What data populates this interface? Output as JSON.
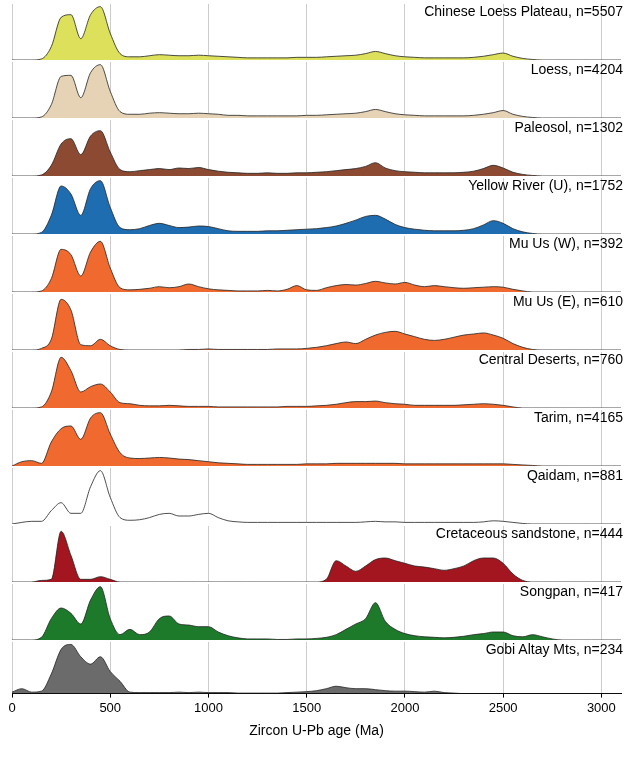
{
  "chart_data": {
    "type": "area",
    "xlabel": "Zircon U-Pb age (Ma)",
    "x": [
      0,
      50,
      100,
      150,
      200,
      250,
      300,
      350,
      400,
      450,
      500,
      550,
      600,
      650,
      700,
      750,
      800,
      850,
      900,
      950,
      1000,
      1050,
      1100,
      1150,
      1200,
      1250,
      1300,
      1350,
      1400,
      1450,
      1500,
      1550,
      1600,
      1650,
      1700,
      1750,
      1800,
      1850,
      1900,
      1950,
      2000,
      2050,
      2100,
      2150,
      2200,
      2250,
      2300,
      2350,
      2400,
      2450,
      2500,
      2550,
      2600,
      2650,
      2700,
      2750,
      2800,
      2850,
      2900,
      2950,
      3000,
      3050,
      3100
    ],
    "xlim": [
      0,
      3100
    ],
    "xticks": [
      0,
      500,
      1000,
      1500,
      2000,
      2500,
      3000
    ],
    "ylim": [
      0,
      1.05
    ],
    "grid": true,
    "tick_labels": "x",
    "series": [
      {
        "name": "Chinese Loess Plateau, n=5507",
        "color": "#dce05a",
        "values": [
          0,
          0,
          0,
          0.02,
          0.25,
          0.8,
          0.85,
          0.4,
          0.85,
          1.0,
          0.5,
          0.12,
          0.06,
          0.06,
          0.08,
          0.1,
          0.09,
          0.08,
          0.08,
          0.09,
          0.08,
          0.07,
          0.06,
          0.05,
          0.04,
          0.04,
          0.04,
          0.04,
          0.04,
          0.05,
          0.05,
          0.05,
          0.06,
          0.07,
          0.08,
          0.09,
          0.12,
          0.16,
          0.12,
          0.08,
          0.06,
          0.05,
          0.04,
          0.04,
          0.04,
          0.04,
          0.04,
          0.05,
          0.07,
          0.1,
          0.13,
          0.07,
          0.03,
          0.01,
          0,
          0,
          0,
          0,
          0,
          0,
          0,
          0,
          0
        ]
      },
      {
        "name": "Loess, n=4204",
        "color": "#e6d2b5",
        "values": [
          0,
          0,
          0,
          0.02,
          0.25,
          0.78,
          0.8,
          0.38,
          0.85,
          1.0,
          0.5,
          0.12,
          0.07,
          0.07,
          0.09,
          0.1,
          0.09,
          0.08,
          0.08,
          0.09,
          0.08,
          0.07,
          0.05,
          0.05,
          0.04,
          0.04,
          0.04,
          0.04,
          0.04,
          0.04,
          0.05,
          0.05,
          0.06,
          0.07,
          0.08,
          0.09,
          0.12,
          0.16,
          0.12,
          0.08,
          0.06,
          0.05,
          0.04,
          0.04,
          0.04,
          0.04,
          0.04,
          0.05,
          0.07,
          0.1,
          0.14,
          0.07,
          0.03,
          0.01,
          0,
          0,
          0,
          0,
          0,
          0,
          0,
          0,
          0
        ]
      },
      {
        "name": "Paleosol, n=1302",
        "color": "#8c4a32",
        "values": [
          0,
          0,
          0,
          0.02,
          0.2,
          0.6,
          0.7,
          0.4,
          0.75,
          0.85,
          0.45,
          0.12,
          0.08,
          0.1,
          0.12,
          0.14,
          0.12,
          0.15,
          0.14,
          0.16,
          0.12,
          0.09,
          0.07,
          0.06,
          0.05,
          0.05,
          0.06,
          0.05,
          0.05,
          0.06,
          0.06,
          0.07,
          0.08,
          0.1,
          0.12,
          0.14,
          0.18,
          0.25,
          0.15,
          0.1,
          0.08,
          0.07,
          0.06,
          0.06,
          0.06,
          0.06,
          0.07,
          0.09,
          0.14,
          0.2,
          0.15,
          0.07,
          0.03,
          0.01,
          0,
          0,
          0,
          0,
          0,
          0,
          0,
          0,
          0
        ]
      },
      {
        "name": "Yellow River (U), n=1752",
        "color": "#1f6db1",
        "values": [
          0,
          0,
          0,
          0.03,
          0.35,
          0.9,
          0.75,
          0.35,
          0.85,
          1.0,
          0.5,
          0.12,
          0.08,
          0.1,
          0.16,
          0.2,
          0.16,
          0.12,
          0.13,
          0.15,
          0.14,
          0.1,
          0.06,
          0.05,
          0.05,
          0.05,
          0.06,
          0.06,
          0.07,
          0.08,
          0.09,
          0.1,
          0.12,
          0.15,
          0.2,
          0.26,
          0.33,
          0.35,
          0.28,
          0.18,
          0.12,
          0.09,
          0.07,
          0.06,
          0.06,
          0.06,
          0.07,
          0.1,
          0.17,
          0.25,
          0.2,
          0.1,
          0.04,
          0.01,
          0,
          0,
          0,
          0,
          0,
          0,
          0,
          0,
          0
        ]
      },
      {
        "name": "Mu Us (W), n=392",
        "color": "#f06a2f",
        "values": [
          0,
          0,
          0,
          0.02,
          0.25,
          0.8,
          0.7,
          0.3,
          0.75,
          0.95,
          0.45,
          0.08,
          0.04,
          0.05,
          0.07,
          0.1,
          0.08,
          0.1,
          0.15,
          0.1,
          0.06,
          0.04,
          0.03,
          0.02,
          0.02,
          0.02,
          0.03,
          0.02,
          0.05,
          0.12,
          0.04,
          0.03,
          0.08,
          0.12,
          0.14,
          0.13,
          0.16,
          0.2,
          0.17,
          0.15,
          0.18,
          0.13,
          0.1,
          0.12,
          0.1,
          0.08,
          0.07,
          0.08,
          0.09,
          0.1,
          0.09,
          0.05,
          0.02,
          0,
          0,
          0,
          0,
          0,
          0,
          0,
          0,
          0,
          0
        ]
      },
      {
        "name": "Mu Us (E), n=610",
        "color": "#f06a2f",
        "values": [
          0,
          0,
          0,
          0.03,
          0.2,
          0.95,
          0.75,
          0.1,
          0.08,
          0.2,
          0.08,
          0.01,
          0,
          0,
          0,
          0,
          0,
          0,
          0.01,
          0.01,
          0.02,
          0.01,
          0.01,
          0.01,
          0.01,
          0.01,
          0.01,
          0.02,
          0.02,
          0.02,
          0.03,
          0.05,
          0.08,
          0.12,
          0.15,
          0.12,
          0.2,
          0.28,
          0.33,
          0.35,
          0.3,
          0.25,
          0.2,
          0.18,
          0.2,
          0.24,
          0.28,
          0.3,
          0.32,
          0.28,
          0.22,
          0.12,
          0.05,
          0.01,
          0,
          0,
          0,
          0,
          0,
          0,
          0,
          0,
          0
        ]
      },
      {
        "name": "Central Deserts, n=760",
        "color": "#f06a2f",
        "values": [
          0,
          0,
          0,
          0.02,
          0.3,
          0.95,
          0.7,
          0.3,
          0.4,
          0.45,
          0.3,
          0.1,
          0.08,
          0.05,
          0.04,
          0.04,
          0.05,
          0.04,
          0.03,
          0.03,
          0.03,
          0.02,
          0.02,
          0.02,
          0.02,
          0.02,
          0.02,
          0.02,
          0.03,
          0.03,
          0.03,
          0.04,
          0.05,
          0.07,
          0.1,
          0.12,
          0.12,
          0.13,
          0.1,
          0.08,
          0.07,
          0.05,
          0.05,
          0.05,
          0.05,
          0.05,
          0.06,
          0.07,
          0.08,
          0.07,
          0.05,
          0.02,
          0,
          0,
          0,
          0,
          0,
          0,
          0,
          0,
          0,
          0,
          0
        ]
      },
      {
        "name": "Tarim, n=4165",
        "color": "#f06a2f",
        "values": [
          0,
          0.08,
          0.1,
          0.05,
          0.45,
          0.7,
          0.75,
          0.5,
          0.9,
          1.0,
          0.6,
          0.25,
          0.15,
          0.14,
          0.15,
          0.16,
          0.15,
          0.13,
          0.12,
          0.1,
          0.08,
          0.06,
          0.05,
          0.04,
          0.03,
          0.03,
          0.03,
          0.03,
          0.03,
          0.03,
          0.04,
          0.04,
          0.04,
          0.05,
          0.05,
          0.05,
          0.05,
          0.05,
          0.05,
          0.05,
          0.04,
          0.04,
          0.04,
          0.04,
          0.04,
          0.04,
          0.04,
          0.04,
          0.04,
          0.04,
          0.04,
          0.03,
          0.02,
          0.01,
          0,
          0,
          0,
          0,
          0,
          0,
          0,
          0,
          0
        ]
      },
      {
        "name": "Qaidam, n=881",
        "color": "#ffffff",
        "values": [
          0,
          0.03,
          0.05,
          0.05,
          0.25,
          0.4,
          0.2,
          0.2,
          0.7,
          1.0,
          0.5,
          0.12,
          0.07,
          0.08,
          0.12,
          0.18,
          0.2,
          0.15,
          0.15,
          0.18,
          0.2,
          0.12,
          0.06,
          0.04,
          0.03,
          0.03,
          0.03,
          0.03,
          0.03,
          0.03,
          0.03,
          0.03,
          0.03,
          0.03,
          0.03,
          0.03,
          0.04,
          0.05,
          0.04,
          0.04,
          0.03,
          0.03,
          0.03,
          0.03,
          0.03,
          0.03,
          0.03,
          0.03,
          0.04,
          0.06,
          0.05,
          0.03,
          0.01,
          0,
          0,
          0,
          0,
          0,
          0,
          0,
          0,
          0,
          0
        ]
      },
      {
        "name": "Cretaceous sandstone, n=444",
        "color": "#a3151f",
        "values": [
          0,
          0,
          0,
          0.03,
          0.05,
          0.95,
          0.5,
          0.05,
          0.05,
          0.1,
          0.05,
          0,
          0,
          0,
          0,
          0,
          0,
          0,
          0,
          0,
          0,
          0,
          0,
          0,
          0,
          0,
          0,
          0,
          0,
          0,
          0,
          0,
          0.05,
          0.4,
          0.3,
          0.2,
          0.3,
          0.42,
          0.45,
          0.4,
          0.35,
          0.3,
          0.28,
          0.25,
          0.22,
          0.25,
          0.3,
          0.4,
          0.45,
          0.45,
          0.35,
          0.15,
          0.03,
          0,
          0,
          0,
          0,
          0,
          0,
          0,
          0,
          0,
          0
        ]
      },
      {
        "name": "Songpan, n=417",
        "color": "#1d7a2b",
        "values": [
          0,
          0,
          0,
          0.05,
          0.4,
          0.6,
          0.5,
          0.3,
          0.75,
          1.0,
          0.4,
          0.1,
          0.2,
          0.1,
          0.15,
          0.4,
          0.45,
          0.3,
          0.28,
          0.25,
          0.25,
          0.15,
          0.08,
          0.04,
          0.02,
          0.02,
          0.02,
          0.01,
          0.01,
          0.02,
          0.02,
          0.03,
          0.05,
          0.1,
          0.2,
          0.3,
          0.4,
          0.7,
          0.35,
          0.2,
          0.12,
          0.08,
          0.06,
          0.05,
          0.04,
          0.05,
          0.07,
          0.1,
          0.12,
          0.15,
          0.15,
          0.08,
          0.06,
          0.1,
          0.06,
          0.02,
          0,
          0,
          0,
          0,
          0,
          0,
          0
        ]
      },
      {
        "name": "Gobi Altay Mts, n=234",
        "color": "#6b6b6b",
        "values": [
          0.03,
          0.1,
          0.03,
          0.05,
          0.4,
          0.9,
          1.0,
          0.75,
          0.6,
          0.75,
          0.45,
          0.25,
          0.03,
          0.02,
          0.02,
          0.02,
          0.02,
          0.03,
          0.02,
          0.03,
          0.02,
          0.02,
          0.02,
          0.01,
          0.01,
          0.01,
          0.01,
          0.01,
          0.02,
          0.03,
          0.04,
          0.06,
          0.1,
          0.15,
          0.12,
          0.1,
          0.1,
          0.08,
          0.06,
          0.05,
          0.05,
          0.04,
          0.03,
          0.05,
          0.02,
          0.01,
          0,
          0,
          0,
          0,
          0,
          0,
          0,
          0,
          0,
          0,
          0,
          0,
          0,
          0,
          0,
          0,
          0
        ]
      }
    ]
  }
}
